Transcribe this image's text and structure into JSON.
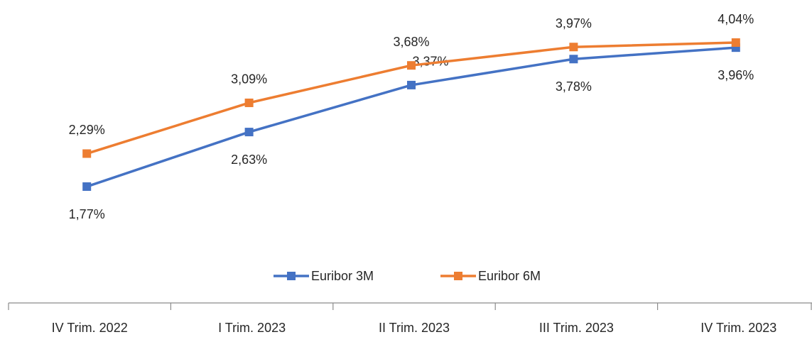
{
  "chart_data": {
    "type": "line",
    "categories": [
      "IV Trim. 2022",
      "I Trim. 2023",
      "II Trim. 2023",
      "III Trim. 2023",
      "IV Trim. 2023"
    ],
    "series": [
      {
        "name": "Euribor 3M",
        "color": "#4472c4",
        "values": [
          1.77,
          2.63,
          3.37,
          3.78,
          3.96
        ],
        "value_labels": [
          "1,77%",
          "2,63%",
          "3,37%",
          "3,78%",
          "3,96%"
        ]
      },
      {
        "name": "Euribor 6M",
        "color": "#ed7d31",
        "values": [
          2.29,
          3.09,
          3.68,
          3.97,
          4.04
        ],
        "value_labels": [
          "2,29%",
          "3,09%",
          "3,68%",
          "3,97%",
          "4,04%"
        ]
      }
    ],
    "legend": "bottom"
  }
}
